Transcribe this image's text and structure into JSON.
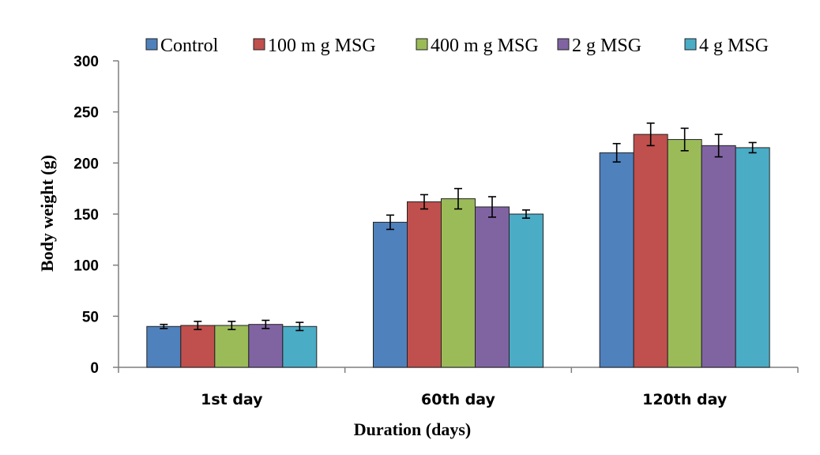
{
  "chart_data": {
    "type": "bar",
    "title": "",
    "xlabel": "Duration  (days)",
    "ylabel": "Body weight (g)",
    "ylim": [
      0,
      300
    ],
    "yticks": [
      0,
      50,
      100,
      150,
      200,
      250,
      300
    ],
    "grid": false,
    "legend_position": "top",
    "categories": [
      "1st day",
      "60th day",
      "120th day"
    ],
    "series": [
      {
        "name": "Control",
        "color": "#4f81bd",
        "values": [
          40,
          142,
          210
        ],
        "errors": [
          2,
          7,
          9
        ]
      },
      {
        "name": "100 m g MSG",
        "color": "#c0504d",
        "values": [
          41,
          162,
          228
        ],
        "errors": [
          4,
          7,
          11
        ]
      },
      {
        "name": "400 m g MSG",
        "color": "#9bbb59",
        "values": [
          41,
          165,
          223
        ],
        "errors": [
          4,
          10,
          11
        ]
      },
      {
        "name": "2 g MSG",
        "color": "#8064a2",
        "values": [
          42,
          157,
          217
        ],
        "errors": [
          4,
          10,
          11
        ]
      },
      {
        "name": "4 g MSG",
        "color": "#4bacc6",
        "values": [
          40,
          150,
          215
        ],
        "errors": [
          4,
          4,
          5
        ]
      }
    ]
  }
}
